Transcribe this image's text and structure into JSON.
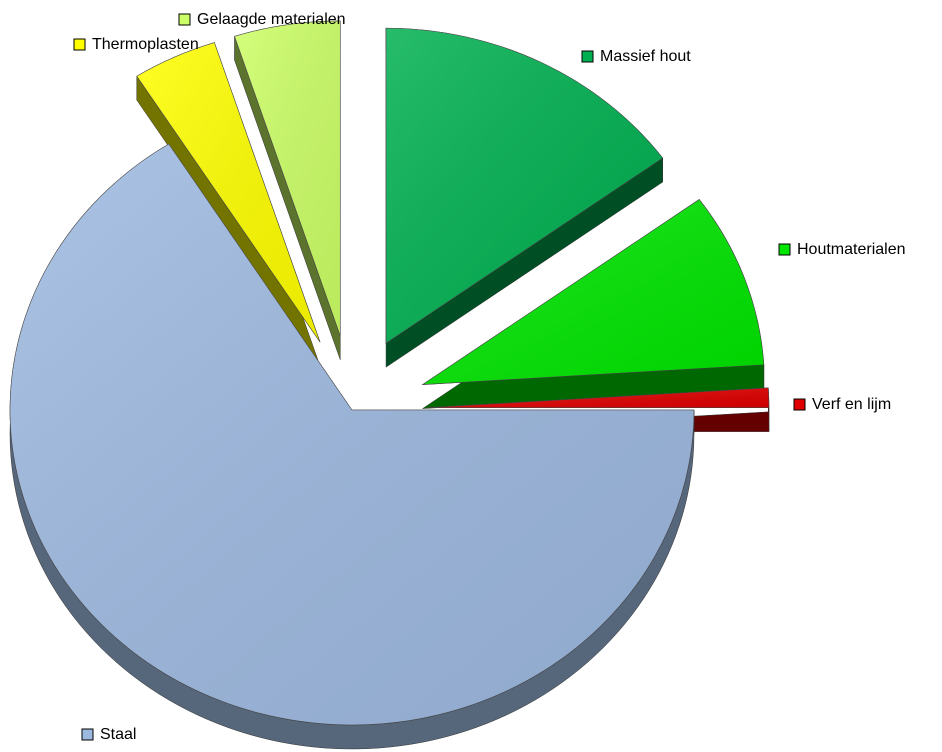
{
  "chart_data": {
    "type": "pie",
    "categories": [
      "Massief hout",
      "Houtmaterialen",
      "Verf en lijm",
      "Staal",
      "Thermoplasten",
      "Gelaagde materialen"
    ],
    "values": [
      15,
      9,
      1,
      66,
      4,
      5
    ],
    "colors": [
      "#00b050",
      "#00e600",
      "#e00000",
      "#9db9e0",
      "#ffff00",
      "#ccff66"
    ]
  }
}
